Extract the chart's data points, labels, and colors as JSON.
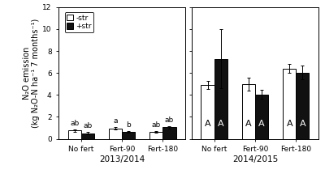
{
  "left_panel": {
    "year": "2013/2014",
    "categories": [
      "No fert",
      "Fert-90",
      "Fert-180"
    ],
    "minus_str_values": [
      0.75,
      0.95,
      0.63
    ],
    "plus_str_values": [
      0.52,
      0.62,
      1.05
    ],
    "minus_str_errors": [
      0.12,
      0.1,
      0.08
    ],
    "plus_str_errors": [
      0.08,
      0.08,
      0.1
    ],
    "letters_minus": [
      "ab",
      "a",
      "ab"
    ],
    "letters_plus": [
      "ab",
      "b",
      "ab"
    ],
    "ylim": [
      0,
      12
    ],
    "yticks": [
      0,
      2,
      4,
      6,
      8,
      10,
      12
    ]
  },
  "right_panel": {
    "year": "2014/2015",
    "categories": [
      "No fert",
      "Fert-90",
      "Fert-180"
    ],
    "minus_str_values": [
      4.9,
      5.0,
      6.4
    ],
    "plus_str_values": [
      7.3,
      4.05,
      6.05
    ],
    "minus_str_errors": [
      0.35,
      0.6,
      0.42
    ],
    "plus_str_errors": [
      2.7,
      0.4,
      0.6
    ],
    "letters_minus": [
      "A",
      "A",
      "A"
    ],
    "letters_plus": [
      "A",
      "A",
      "A"
    ],
    "ylim": [
      0,
      12
    ],
    "yticks": [
      0,
      2,
      4,
      6,
      8,
      10,
      12
    ]
  },
  "bar_width": 0.32,
  "bar_color_minus": "#ffffff",
  "bar_color_plus": "#111111",
  "bar_edgecolor": "#000000",
  "ylabel_line1": "N₂O emission",
  "ylabel_line2": "(kg N₂O-N ha⁻¹ 7 months⁻¹)",
  "legend_minus": "-str",
  "legend_plus": "+str",
  "letter_fontsize": 6.5,
  "tick_fontsize": 6.5,
  "label_fontsize": 7,
  "year_fontsize": 7.5
}
